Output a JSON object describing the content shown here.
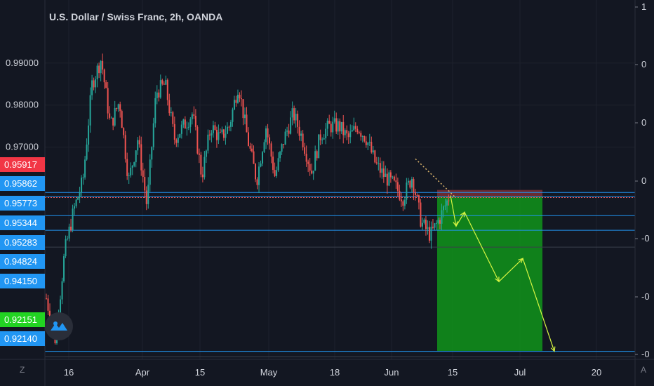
{
  "header": {
    "title": "U.S. Dollar / Swiss Franc, 2h, OANDA"
  },
  "corner": {
    "bottom_left": "Z",
    "bottom_right": "A"
  },
  "colors": {
    "background": "#131722",
    "grid": "#1e222d",
    "axis_text": "#d1d4dc",
    "up": "#26a69a",
    "down": "#ef5350",
    "hline": "#2196f3",
    "stop_zone": "#7a2f35",
    "target_zone": "#118d1b",
    "projection": "#d7f542"
  },
  "chart_data": {
    "type": "candlestick",
    "symbol": "USDCHF",
    "interval": "2h",
    "ylim": [
      0.9195,
      1.005
    ],
    "x_ticks": [
      "16",
      "Apr",
      "15",
      "May",
      "18",
      "Jun",
      "15",
      "Jul",
      "20"
    ],
    "left_axis_ticks": [
      0.99,
      0.98,
      0.97
    ],
    "right_axis_labels": [
      "1",
      "0",
      "0",
      "0",
      "-0",
      "-0",
      "-0"
    ],
    "price_tags": [
      {
        "label": "0.95917",
        "value": 0.95917,
        "color": "#f23645"
      },
      {
        "label": "0.95862",
        "value": 0.95862,
        "color": "#2196f3"
      },
      {
        "label": "0.95773",
        "value": 0.95773,
        "color": "#2196f3"
      },
      {
        "label": "0.95344",
        "value": 0.95344,
        "color": "#2196f3"
      },
      {
        "label": "0.95283",
        "value": 0.95283,
        "color": "#2196f3"
      },
      {
        "label": "0.94824",
        "value": 0.94824,
        "color": "#2196f3"
      },
      {
        "label": "0.94150",
        "value": 0.9415,
        "color": "#2196f3"
      },
      {
        "label": "0.92151",
        "value": 0.92151,
        "color": "#22d322"
      },
      {
        "label": "0.92140",
        "value": 0.9214,
        "color": "#2196f3"
      }
    ],
    "horizontal_lines": [
      0.9592,
      0.9582,
      0.9537,
      0.9502,
      0.9214
    ],
    "candles_path": [
      0.934,
      0.924,
      0.945,
      0.955,
      0.962,
      0.985,
      0.991,
      0.975,
      0.981,
      0.962,
      0.972,
      0.956,
      0.983,
      0.985,
      0.972,
      0.975,
      0.978,
      0.963,
      0.975,
      0.972,
      0.975,
      0.985,
      0.972,
      0.962,
      0.975,
      0.963,
      0.972,
      0.978,
      0.972,
      0.964,
      0.973,
      0.975,
      0.975,
      0.972,
      0.975,
      0.972,
      0.966,
      0.963,
      0.961,
      0.958,
      0.963,
      0.952,
      0.949,
      0.953,
      0.958
    ],
    "position": {
      "type": "short",
      "entry": 0.9582,
      "stop": 0.9598,
      "target": 0.92151
    },
    "projection_path": [
      0.9585,
      0.9512,
      0.9545,
      0.938,
      0.9435,
      0.9214
    ]
  }
}
